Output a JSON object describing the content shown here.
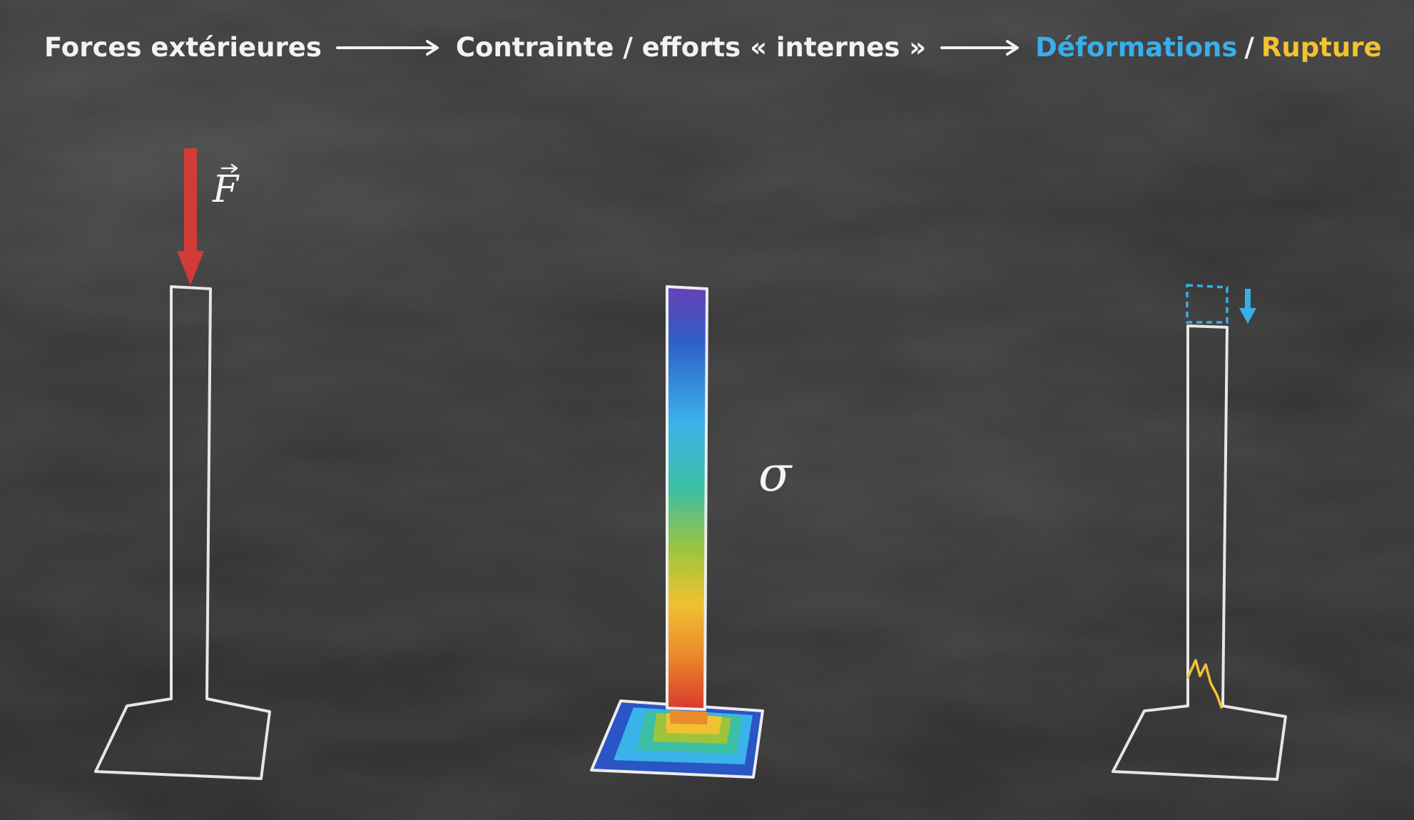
{
  "header": {
    "step1": "Forces extérieures",
    "step2": "Contrainte / efforts « internes »",
    "step3a": "Déformations",
    "separator": "/",
    "step3b": "Rupture"
  },
  "labels": {
    "force_symbol": "F",
    "stress_symbol": "σ"
  },
  "colors": {
    "text": "#f2f2f2",
    "deformation": "#3aaee8",
    "rupture": "#f2c230",
    "force_arrow": "#d23b36",
    "outline": "#e8e8e8"
  },
  "icons": {
    "process_arrow": "right-arrow-icon",
    "force": "down-arrow-icon",
    "deformation": "down-arrow-icon",
    "rupture": "crack-icon"
  }
}
